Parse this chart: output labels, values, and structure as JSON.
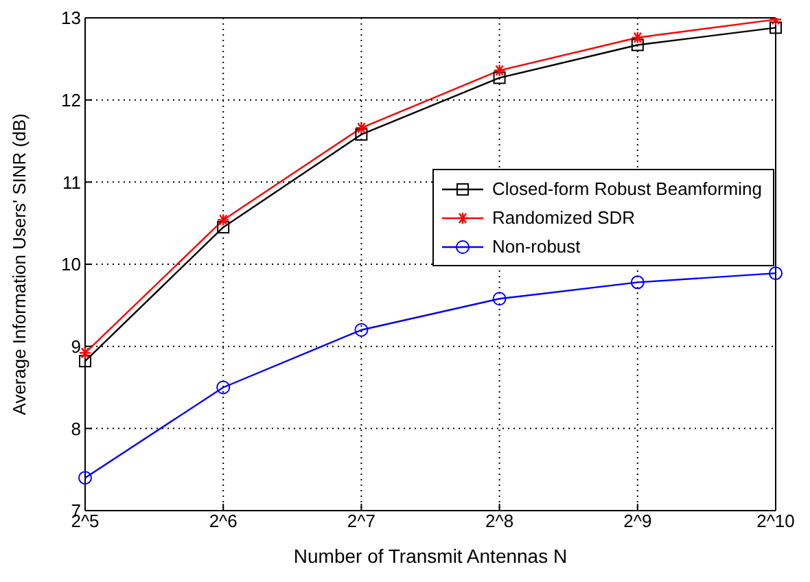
{
  "chart_data": {
    "type": "line",
    "xlabel": "Number of Transmit Antennas N",
    "ylabel": "Average Information Users' SINR (dB)",
    "categories": [
      "2^5",
      "2^6",
      "2^7",
      "2^8",
      "2^9",
      "2^10"
    ],
    "series": [
      {
        "name": "Closed-form Robust Beamforming",
        "color": "#000000",
        "marker": "square",
        "values": [
          8.82,
          10.45,
          11.58,
          12.27,
          12.67,
          12.88
        ]
      },
      {
        "name": "Randomized SDR",
        "color": "#ff0000",
        "marker": "cross",
        "values": [
          8.92,
          10.54,
          11.66,
          12.36,
          12.76,
          12.98
        ]
      },
      {
        "name": "Non-robust",
        "color": "#0000ff",
        "marker": "circle",
        "values": [
          7.4,
          8.5,
          9.2,
          9.58,
          9.78,
          9.89
        ]
      }
    ],
    "ylim": [
      7,
      13
    ],
    "yticks": [
      7,
      8,
      9,
      10,
      11,
      12,
      13
    ],
    "grid": true,
    "legend": "right",
    "line_style": "solid"
  }
}
